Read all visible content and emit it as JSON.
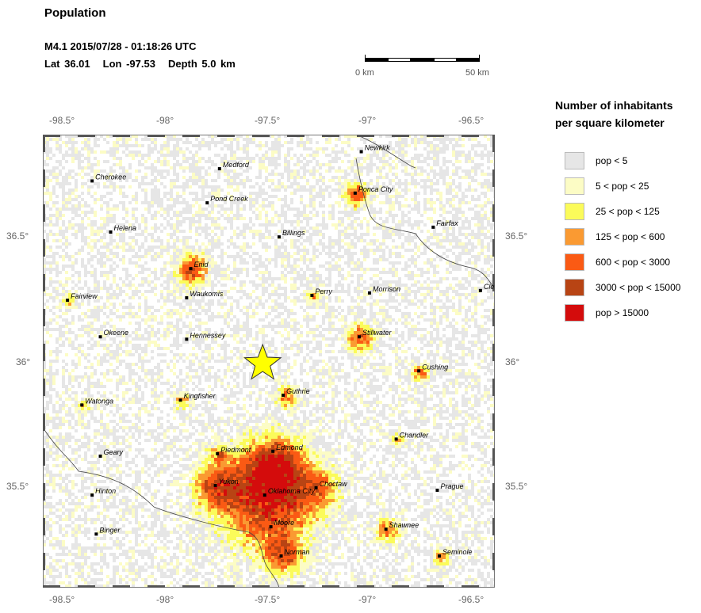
{
  "header": {
    "title": "Population",
    "event_line": "M4.1  2015/07/28 - 01:18:26 UTC",
    "lat": "Lat 36.01",
    "lon": "Lon -97.53",
    "depth": "Depth  5.0 km"
  },
  "scale": {
    "left_label": "0 km",
    "right_label": "50 km"
  },
  "axes": {
    "top_lon": [
      "-98.5°",
      "-98°",
      "-97.5°",
      "-97°",
      "-96.5°"
    ],
    "bottom_lon": [
      "-98.5°",
      "-98°",
      "-97.5°",
      "-97°",
      "-96.5°"
    ],
    "left_lat": [
      "36.5°",
      "36°",
      "35.5°"
    ],
    "right_lat": [
      "36.5°",
      "36°",
      "35.5°"
    ],
    "lon_range": [
      -98.6,
      -96.4
    ],
    "lat_range": [
      35.09,
      36.95
    ]
  },
  "epicenter": {
    "lat": 36.01,
    "lon": -97.53,
    "marker": "star",
    "color": "#ffff00"
  },
  "cities": [
    {
      "name": "Newkirk",
      "lat": 36.88,
      "lon": -97.05
    },
    {
      "name": "Medford",
      "lat": 36.81,
      "lon": -97.74
    },
    {
      "name": "Cherokee",
      "lat": 36.76,
      "lon": -98.36
    },
    {
      "name": "Ponca City",
      "lat": 36.71,
      "lon": -97.08
    },
    {
      "name": "Pond Creek",
      "lat": 36.67,
      "lon": -97.8
    },
    {
      "name": "Helena",
      "lat": 36.55,
      "lon": -98.27
    },
    {
      "name": "Fairfax",
      "lat": 36.57,
      "lon": -96.7
    },
    {
      "name": "Billings",
      "lat": 36.53,
      "lon": -97.45
    },
    {
      "name": "Enid",
      "lat": 36.4,
      "lon": -97.88
    },
    {
      "name": "Perry",
      "lat": 36.29,
      "lon": -97.29
    },
    {
      "name": "Morrison",
      "lat": 36.3,
      "lon": -97.01
    },
    {
      "name": "Cleveland",
      "lat": 36.31,
      "lon": -96.47
    },
    {
      "name": "Waukomis",
      "lat": 36.28,
      "lon": -97.9
    },
    {
      "name": "Fairview",
      "lat": 36.27,
      "lon": -98.48
    },
    {
      "name": "Okeene",
      "lat": 36.12,
      "lon": -98.32
    },
    {
      "name": "Hennessey",
      "lat": 36.11,
      "lon": -97.9
    },
    {
      "name": "Stillwater",
      "lat": 36.12,
      "lon": -97.06
    },
    {
      "name": "Cushing",
      "lat": 35.98,
      "lon": -96.77
    },
    {
      "name": "Guthrie",
      "lat": 35.88,
      "lon": -97.43
    },
    {
      "name": "Kingfisher",
      "lat": 35.86,
      "lon": -97.93
    },
    {
      "name": "Watonga",
      "lat": 35.84,
      "lon": -98.41
    },
    {
      "name": "Chandler",
      "lat": 35.7,
      "lon": -96.88
    },
    {
      "name": "Edmond",
      "lat": 35.65,
      "lon": -97.48
    },
    {
      "name": "Piedmont",
      "lat": 35.64,
      "lon": -97.75
    },
    {
      "name": "Geary",
      "lat": 35.63,
      "lon": -98.32
    },
    {
      "name": "Yukon",
      "lat": 35.51,
      "lon": -97.76
    },
    {
      "name": "Choctaw",
      "lat": 35.5,
      "lon": -97.27
    },
    {
      "name": "Oklahoma City",
      "lat": 35.47,
      "lon": -97.52
    },
    {
      "name": "Prague",
      "lat": 35.49,
      "lon": -96.68
    },
    {
      "name": "Hinton",
      "lat": 35.47,
      "lon": -98.36
    },
    {
      "name": "Moore",
      "lat": 35.34,
      "lon": -97.49
    },
    {
      "name": "Shawnee",
      "lat": 35.33,
      "lon": -96.93
    },
    {
      "name": "Binger",
      "lat": 35.31,
      "lon": -98.34
    },
    {
      "name": "Norman",
      "lat": 35.22,
      "lon": -97.44
    },
    {
      "name": "Seminole",
      "lat": 35.22,
      "lon": -96.67
    }
  ],
  "legend": {
    "title_line1": "Number of inhabitants",
    "title_line2": "per square kilometer",
    "items": [
      {
        "label": "pop < 5",
        "color": "#e6e6e6"
      },
      {
        "label": "5 < pop < 25",
        "color": "#fcfcc5"
      },
      {
        "label": "25 < pop < 125",
        "color": "#fbfb5a"
      },
      {
        "label": "125 < pop < 600",
        "color": "#fa9a32"
      },
      {
        "label": "600 < pop < 3000",
        "color": "#fa5a14"
      },
      {
        "label": "3000 < pop < 15000",
        "color": "#b84414"
      },
      {
        "label": "pop > 15000",
        "color": "#d40c0c"
      }
    ]
  }
}
